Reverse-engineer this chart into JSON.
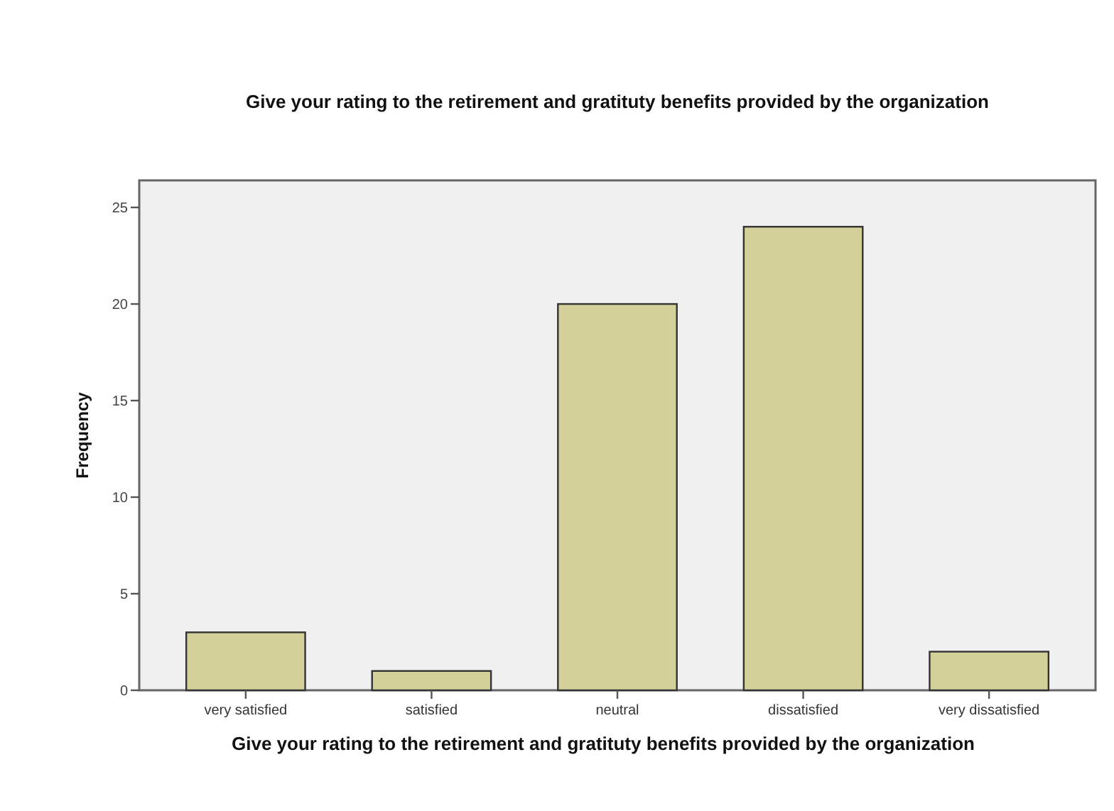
{
  "chart_data": {
    "type": "bar",
    "title": "Give your rating to the retirement and gratituty benefits provided by the organization",
    "xlabel": "Give your rating to the retirement and gratituty benefits provided by the organization",
    "ylabel": "Frequency",
    "categories": [
      "very satisfied",
      "satisfied",
      "neutral",
      "dissatisfied",
      "very dissatisfied"
    ],
    "values": [
      3,
      1,
      20,
      24,
      2
    ],
    "color": "#d4d09a",
    "ylim": [
      0,
      26.4
    ],
    "yticks": [
      0,
      5,
      10,
      15,
      20,
      25
    ],
    "grid": false
  }
}
